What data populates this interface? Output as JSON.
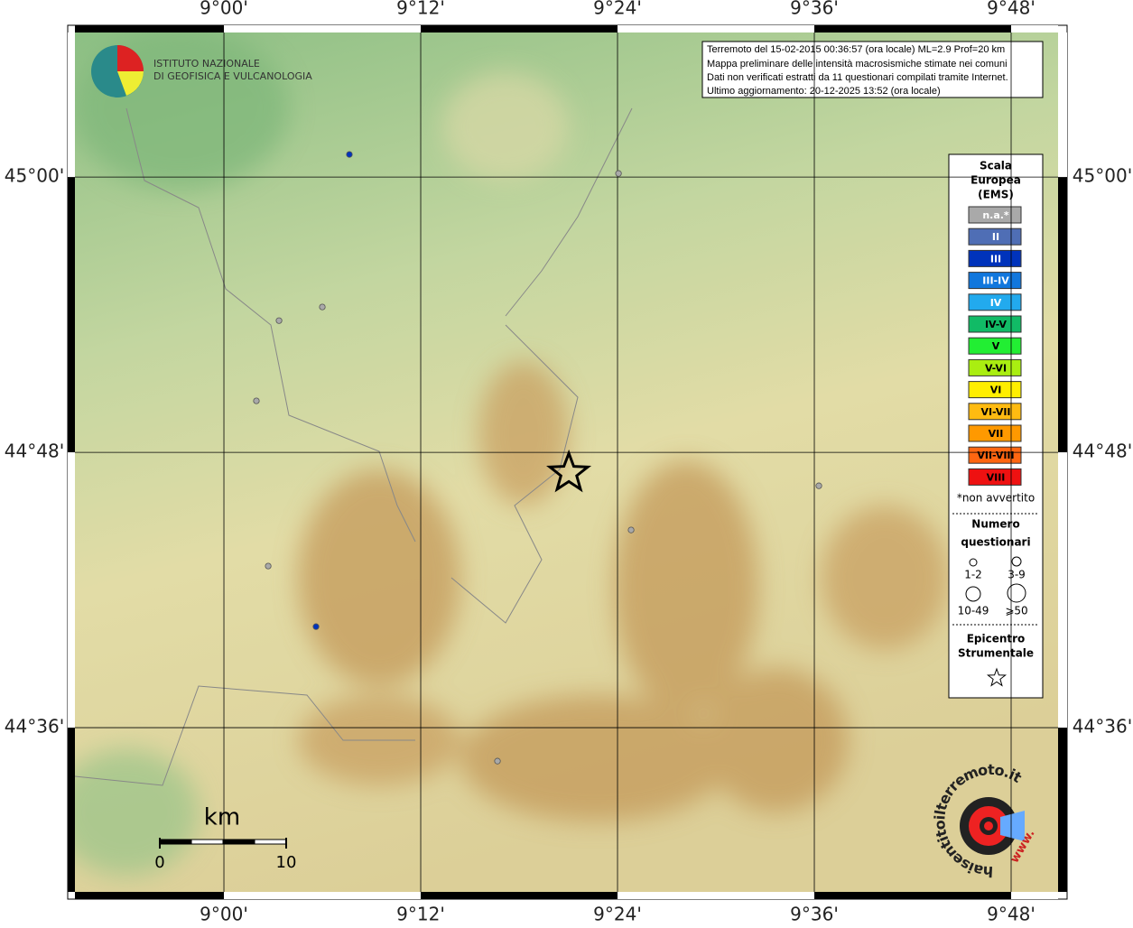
{
  "map": {
    "xlim": [
      8.8486,
      9.8477
    ],
    "ylim": [
      44.4807,
      45.105
    ],
    "xticks": [
      {
        "value": 9.0,
        "label": "9°00'"
      },
      {
        "value": 9.2,
        "label": "9°12'"
      },
      {
        "value": 9.4,
        "label": "9°24'"
      },
      {
        "value": 9.6,
        "label": "9°36'"
      },
      {
        "value": 9.8,
        "label": "9°48'"
      }
    ],
    "yticks": [
      {
        "value": 45.0,
        "label": "45°00'"
      },
      {
        "value": 44.8,
        "label": "44°48'"
      },
      {
        "value": 44.6,
        "label": "44°36'"
      }
    ],
    "grid": true,
    "points": [
      {
        "lon": 9.1275,
        "lat": 45.0164,
        "color": "#0033bb"
      },
      {
        "lon": 9.0936,
        "lat": 44.6734,
        "color": "#0033bb"
      },
      {
        "lon": 9.401,
        "lat": 45.0026,
        "color": "#a9a9a9"
      },
      {
        "lon": 9.056,
        "lat": 44.8957,
        "color": "#a9a9a9"
      },
      {
        "lon": 9.1,
        "lat": 44.9056,
        "color": "#a9a9a9"
      },
      {
        "lon": 9.033,
        "lat": 44.8374,
        "color": "#a9a9a9"
      },
      {
        "lon": 9.045,
        "lat": 44.7174,
        "color": "#a9a9a9"
      },
      {
        "lon": 9.4138,
        "lat": 44.7436,
        "color": "#a9a9a9"
      },
      {
        "lon": 9.6046,
        "lat": 44.7757,
        "color": "#a9a9a9"
      },
      {
        "lon": 9.278,
        "lat": 44.5757,
        "color": "#a9a9a9"
      }
    ],
    "epicenter": {
      "lon": 9.3505,
      "lat": 44.7849
    }
  },
  "institute": [
    "ISTITUTO NAZIONALE",
    "DI GEOFISICA E VULCANOLOGIA"
  ],
  "info": [
    "Terremoto del 15-02-2015 00:36:57 (ora locale) ML=2.9 Prof=20 km",
    "Mappa preliminare delle intensità macrosismiche stimate nei comuni",
    "Dati non verificati estratti da 11 questionari compilati tramite Internet.",
    "Ultimo aggiornamento: 20-12-2025 13:52 (ora locale)"
  ],
  "legend": {
    "title": [
      "Scala",
      "Europea",
      "(EMS)"
    ],
    "items": [
      {
        "label": "n.a.*",
        "color": "#a9a9a9",
        "text_color": "#ffffff"
      },
      {
        "label": "II",
        "color": "#4f6eb5",
        "text_color": "#ffffff"
      },
      {
        "label": "III",
        "color": "#0033bb",
        "text_color": "#ffffff"
      },
      {
        "label": "III-IV",
        "color": "#1177dd",
        "text_color": "#ffffff"
      },
      {
        "label": "IV",
        "color": "#22aaee",
        "text_color": "#ffffff"
      },
      {
        "label": "IV-V",
        "color": "#11bb66",
        "text_color": "#000000"
      },
      {
        "label": "V",
        "color": "#22ee33",
        "text_color": "#000000"
      },
      {
        "label": "V-VI",
        "color": "#aaee11",
        "text_color": "#000000"
      },
      {
        "label": "VI",
        "color": "#ffee00",
        "text_color": "#000000"
      },
      {
        "label": "VI-VII",
        "color": "#ffbb11",
        "text_color": "#000000"
      },
      {
        "label": "VII",
        "color": "#ff9900",
        "text_color": "#000000"
      },
      {
        "label": "VII-VIII",
        "color": "#ff6611",
        "text_color": "#000000"
      },
      {
        "label": "VIII",
        "color": "#ee1111",
        "text_color": "#000000"
      }
    ],
    "note": "*non avvertito",
    "count_title": [
      "Numero",
      "questionari"
    ],
    "counts": [
      "1-2",
      "3-9",
      "10-49",
      "⩾50"
    ],
    "epicenter_title": [
      "Epicentro",
      "Strumentale"
    ]
  },
  "scale_bar": {
    "unit": "km",
    "ticks": [
      0,
      10
    ]
  },
  "site": {
    "name": "haisentitoilterremoto.it",
    "prefix": "www."
  }
}
